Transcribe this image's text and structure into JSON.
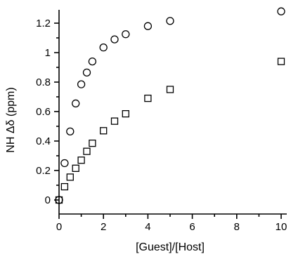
{
  "chart_data": {
    "type": "scatter",
    "title": "",
    "xlabel": "[Guest]/[Host]",
    "ylabel": "NH Δδ (ppm)",
    "xlim": [
      0,
      10
    ],
    "ylim": [
      -0.1,
      1.3
    ],
    "x_ticks": [
      "0",
      "2",
      "4",
      "6",
      "8",
      "10"
    ],
    "y_ticks": [
      "0",
      "0.2",
      "0.4",
      "0.6",
      "0.8",
      "1",
      "1.2"
    ],
    "grid": false,
    "legend": "none",
    "series": [
      {
        "marker": "circle",
        "x": [
          0,
          0.25,
          0.5,
          0.75,
          1,
          1.25,
          1.5,
          2,
          2.5,
          3,
          4,
          5,
          10
        ],
        "y": [
          0,
          0.25,
          0.465,
          0.655,
          0.785,
          0.865,
          0.94,
          1.035,
          1.09,
          1.125,
          1.18,
          1.215,
          1.28
        ]
      },
      {
        "marker": "square",
        "x": [
          0,
          0.25,
          0.5,
          0.75,
          1,
          1.25,
          1.5,
          2,
          2.5,
          3,
          4,
          5,
          10
        ],
        "y": [
          0,
          0.09,
          0.155,
          0.215,
          0.27,
          0.33,
          0.385,
          0.47,
          0.535,
          0.585,
          0.69,
          0.75,
          0.94
        ]
      }
    ]
  }
}
